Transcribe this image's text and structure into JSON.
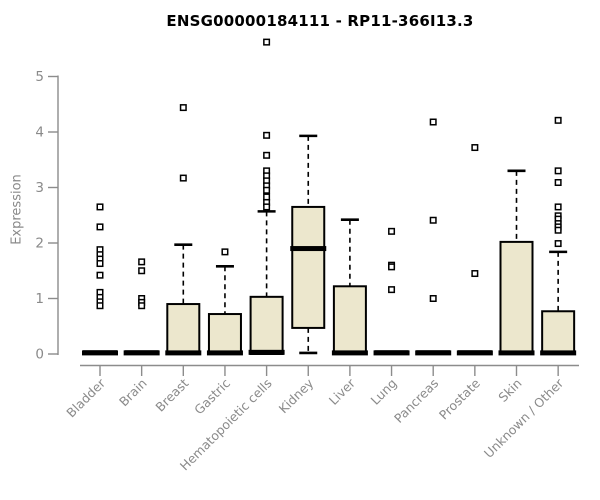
{
  "chart_data": {
    "type": "boxplot",
    "title": "ENSG00000184111 - RP11-366I13.3",
    "ylabel": "Expression",
    "xlabel": "",
    "ylim": [
      0,
      5
    ],
    "yticks": [
      0,
      1,
      2,
      3,
      4,
      5
    ],
    "grid": "off",
    "legend": "none",
    "categories": [
      "Bladder",
      "Brain",
      "Breast",
      "Gastric",
      "Hematopoietic cells",
      "Kidney",
      "Liver",
      "Lung",
      "Pancreas",
      "Prostate",
      "Skin",
      "Unknown / Other"
    ],
    "boxes": [
      {
        "category": "Bladder",
        "q1": 0,
        "median": 0.02,
        "q3": 0.05,
        "whisker_low": 0,
        "whisker_high": 0.05,
        "outliers": [
          2.65,
          2.29,
          1.88,
          1.79,
          1.71,
          1.63,
          1.42,
          1.11,
          1.02,
          0.94,
          0.87
        ]
      },
      {
        "category": "Brain",
        "q1": 0,
        "median": 0.02,
        "q3": 0.05,
        "whisker_low": 0,
        "whisker_high": 0.05,
        "outliers": [
          1.66,
          1.5,
          1.0,
          0.93,
          0.87
        ]
      },
      {
        "category": "Breast",
        "q1": 0,
        "median": 0.02,
        "q3": 0.9,
        "whisker_low": 0,
        "whisker_high": 1.97,
        "outliers": [
          4.44,
          3.17
        ]
      },
      {
        "category": "Gastric",
        "q1": 0,
        "median": 0.02,
        "q3": 0.72,
        "whisker_low": 0,
        "whisker_high": 1.58,
        "outliers": [
          1.84
        ]
      },
      {
        "category": "Hematopoietic cells",
        "q1": 0,
        "median": 0.03,
        "q3": 1.03,
        "whisker_low": 0,
        "whisker_high": 2.57,
        "outliers": [
          5.62,
          3.94,
          3.58,
          3.3,
          3.21,
          3.12,
          3.03,
          2.95,
          2.83,
          2.73,
          2.65
        ]
      },
      {
        "category": "Kidney",
        "q1": 0.47,
        "median": 1.9,
        "q3": 2.65,
        "whisker_low": 0.02,
        "whisker_high": 3.93,
        "outliers": []
      },
      {
        "category": "Liver",
        "q1": 0,
        "median": 0.02,
        "q3": 1.22,
        "whisker_low": 0,
        "whisker_high": 2.42,
        "outliers": []
      },
      {
        "category": "Lung",
        "q1": 0,
        "median": 0.02,
        "q3": 0.05,
        "whisker_low": 0,
        "whisker_high": 0.05,
        "outliers": [
          2.21,
          1.6,
          1.57,
          1.16
        ]
      },
      {
        "category": "Pancreas",
        "q1": 0,
        "median": 0.02,
        "q3": 0.05,
        "whisker_low": 0,
        "whisker_high": 0.05,
        "outliers": [
          4.18,
          2.41,
          1.0
        ]
      },
      {
        "category": "Prostate",
        "q1": 0,
        "median": 0.02,
        "q3": 0.05,
        "whisker_low": 0,
        "whisker_high": 0.05,
        "outliers": [
          3.72,
          1.45
        ]
      },
      {
        "category": "Skin",
        "q1": 0,
        "median": 0.02,
        "q3": 2.02,
        "whisker_low": 0,
        "whisker_high": 3.3,
        "outliers": []
      },
      {
        "category": "Unknown / Other",
        "q1": 0,
        "median": 0.02,
        "q3": 0.77,
        "whisker_low": 0,
        "whisker_high": 1.84,
        "outliers": [
          4.21,
          3.3,
          3.09,
          2.65,
          2.49,
          2.43,
          2.35,
          2.29,
          2.23,
          1.99
        ]
      }
    ],
    "style": {
      "box_fill": "#ece7cd",
      "box_border": "#000000",
      "median_color": "#000000",
      "whisker_color": "#000000",
      "outlier_fill": "#ffffff",
      "outlier_border": "#000000",
      "axis_color": "#8c8c8c",
      "tick_label_color": "#8a8a8a",
      "title_color": "#000000",
      "background": "#ffffff"
    }
  }
}
